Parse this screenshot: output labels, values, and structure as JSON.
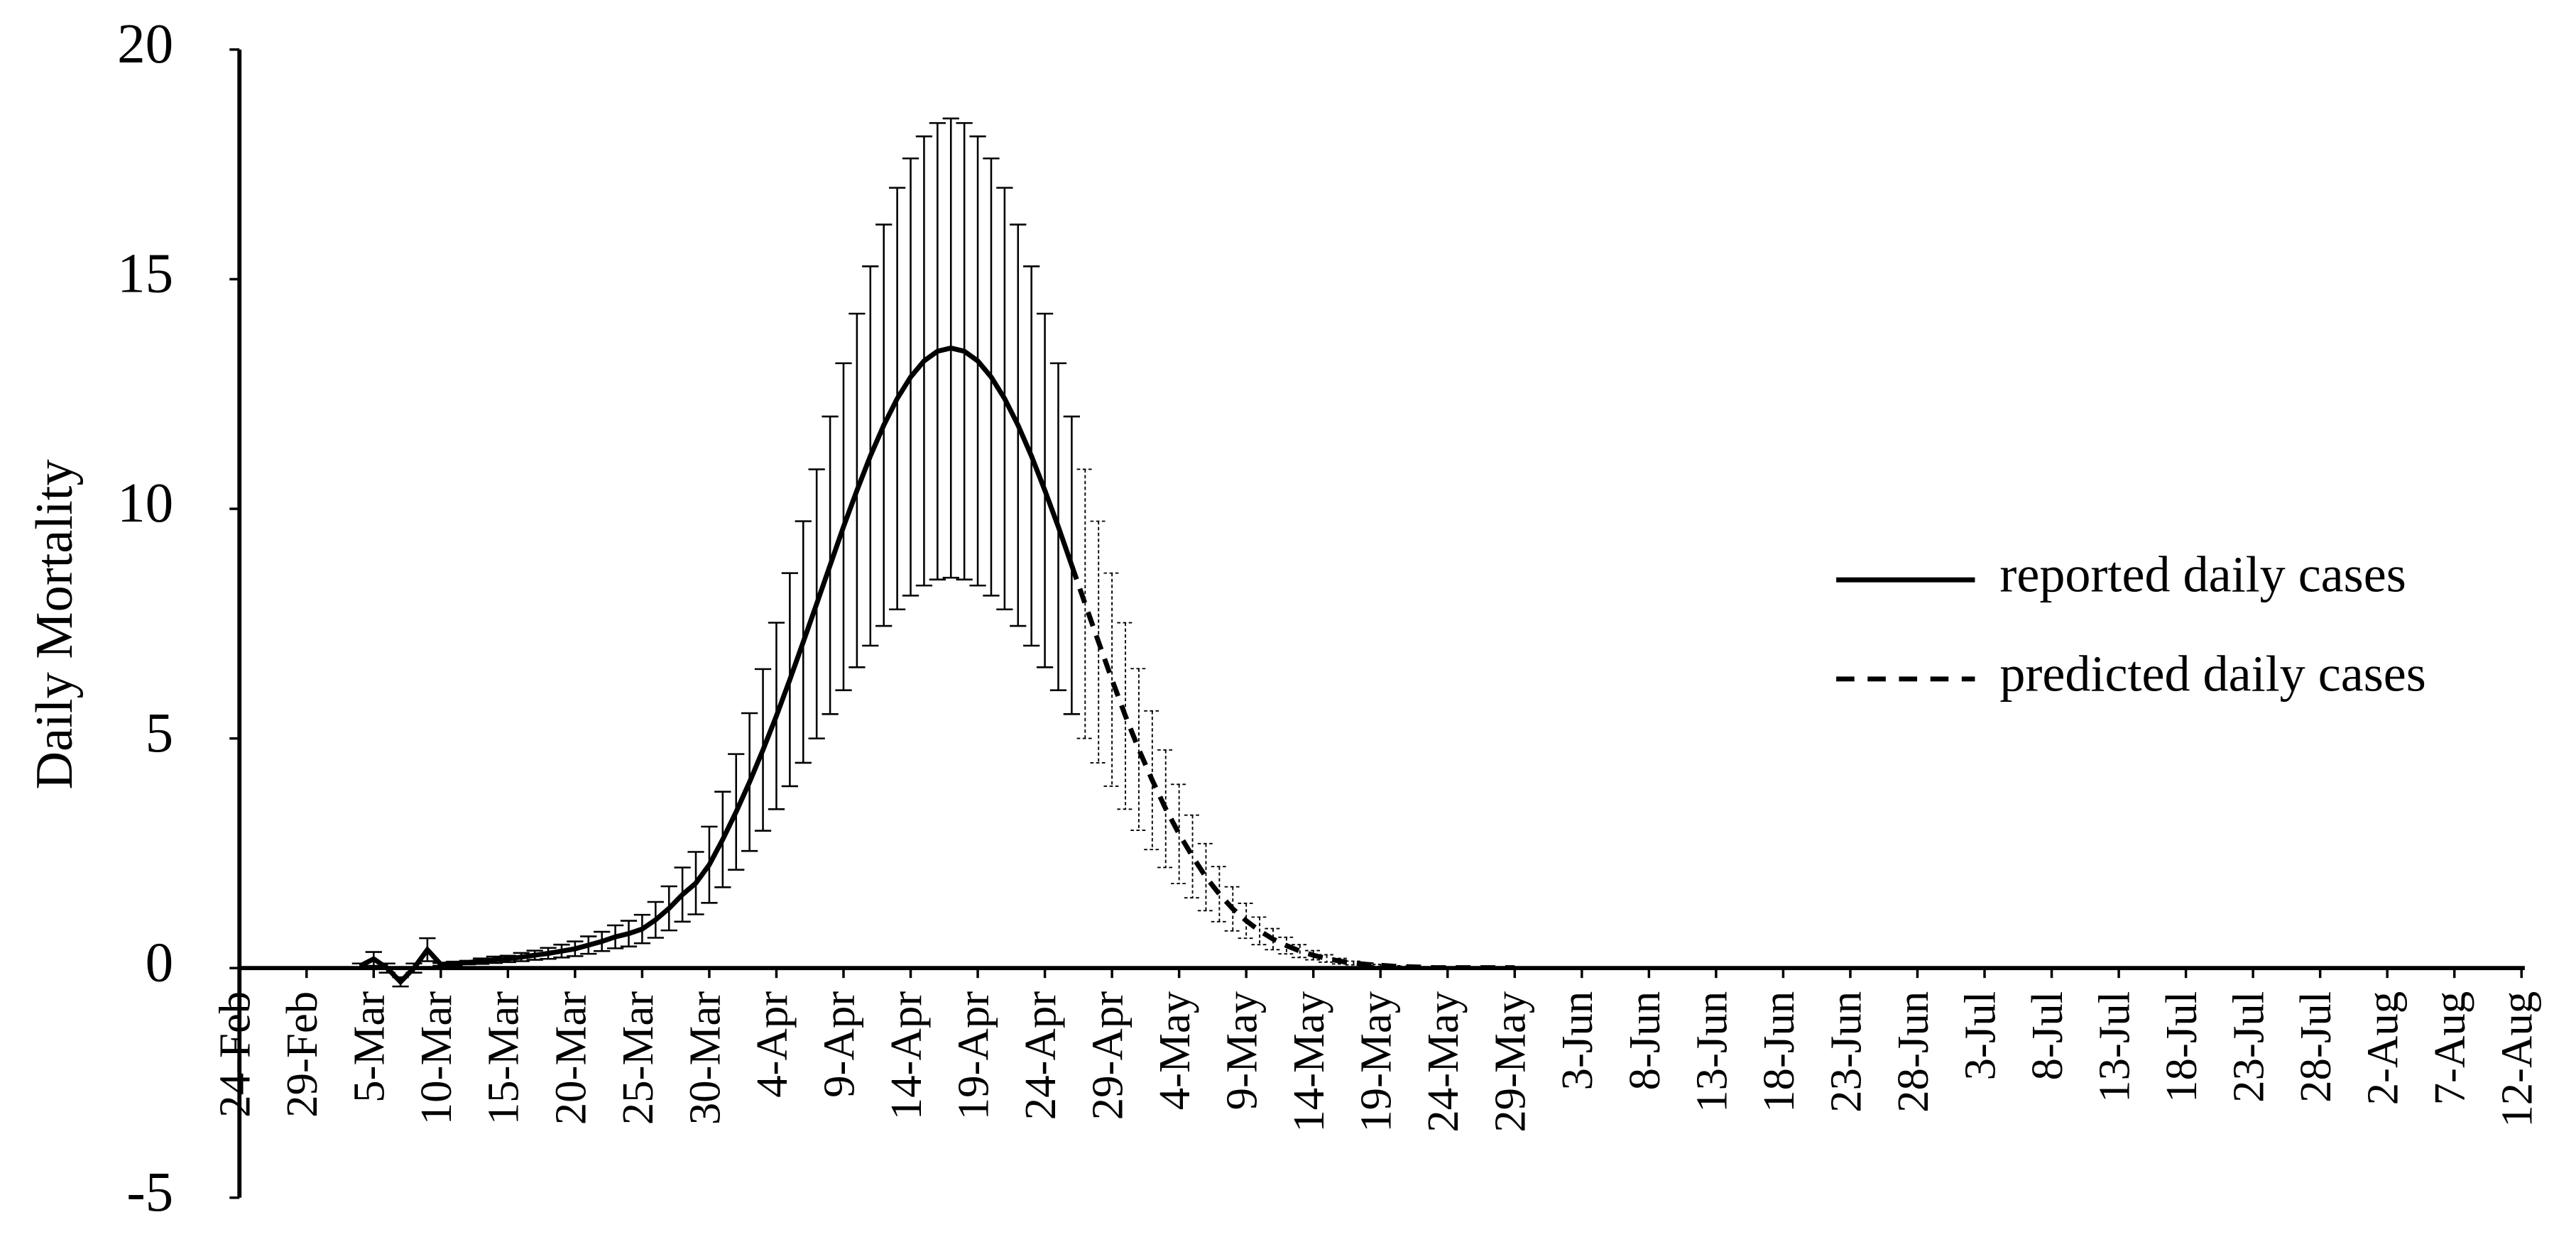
{
  "chart_data": {
    "type": "line",
    "ylabel": "Daily Mortality",
    "categories": [
      "24-Feb",
      null,
      null,
      null,
      null,
      "29-Feb",
      null,
      null,
      null,
      null,
      "5-Mar",
      null,
      null,
      null,
      null,
      "10-Mar",
      null,
      null,
      null,
      null,
      "15-Mar",
      null,
      null,
      null,
      null,
      "20-Mar",
      null,
      null,
      null,
      null,
      "25-Mar",
      null,
      null,
      null,
      null,
      "30-Mar",
      null,
      null,
      null,
      null,
      "4-Apr",
      null,
      null,
      null,
      null,
      "9-Apr",
      null,
      null,
      null,
      null,
      "14-Apr",
      null,
      null,
      null,
      null,
      "19-Apr",
      null,
      null,
      null,
      null,
      "24-Apr",
      null,
      null,
      null,
      null,
      "29-Apr",
      null,
      null,
      null,
      null,
      "4-May",
      null,
      null,
      null,
      null,
      "9-May",
      null,
      null,
      null,
      null,
      "14-May",
      null,
      null,
      null,
      null,
      "19-May",
      null,
      null,
      null,
      null,
      "24-May",
      null,
      null,
      null,
      null,
      "29-May",
      null,
      null,
      null,
      null,
      "3-Jun",
      null,
      null,
      null,
      null,
      "8-Jun",
      null,
      null,
      null,
      null,
      "13-Jun",
      null,
      null,
      null,
      null,
      "18-Jun",
      null,
      null,
      null,
      null,
      "23-Jun",
      null,
      null,
      null,
      null,
      "28-Jun",
      null,
      null,
      null,
      null,
      "3-Jul",
      null,
      null,
      null,
      null,
      "8-Jul",
      null,
      null,
      null,
      null,
      "13-Jul",
      null,
      null,
      null,
      null,
      "18-Jul",
      null,
      null,
      null,
      null,
      "23-Jul",
      null,
      null,
      null,
      null,
      "28-Jul",
      null,
      null,
      null,
      null,
      "2-Aug",
      null,
      null,
      null,
      null,
      "7-Aug",
      null,
      null,
      null,
      null,
      "12-Aug"
    ],
    "series": [
      {
        "name": "reported daily cases",
        "color": "#000000",
        "dash": false,
        "values": [
          null,
          null,
          null,
          null,
          null,
          null,
          null,
          null,
          null,
          0.05,
          0.2,
          0,
          -0.3,
          0,
          0.4,
          0.08,
          0.1,
          0.12,
          0.15,
          0.18,
          0.2,
          0.24,
          0.28,
          0.32,
          0.37,
          0.42,
          0.5,
          0.58,
          0.68,
          0.75,
          0.85,
          1.05,
          1.3,
          1.6,
          1.85,
          2.25,
          2.8,
          3.4,
          4.05,
          4.75,
          5.49,
          6.28,
          7.1,
          7.93,
          8.77,
          9.61,
          10.4,
          11.15,
          11.82,
          12.4,
          12.87,
          13.22,
          13.43,
          13.5,
          13.43,
          13.22,
          12.87,
          12.4,
          11.82,
          11.15,
          10.4,
          9.61,
          8.77,
          null,
          null,
          null,
          null,
          null,
          null,
          null,
          null,
          null,
          null,
          null,
          null,
          null,
          null,
          null,
          null,
          null,
          null,
          null,
          null,
          null,
          null,
          null,
          null,
          null,
          null,
          null,
          null,
          null,
          null,
          null,
          null,
          null,
          null,
          null,
          null,
          null,
          null,
          null,
          null,
          null,
          null,
          null,
          null,
          null,
          null,
          null,
          null,
          null,
          null,
          null,
          null,
          null,
          null,
          null,
          null,
          null,
          null,
          null,
          null,
          null,
          null,
          null,
          null,
          null,
          null,
          null,
          null,
          null,
          null,
          null,
          null,
          null,
          null,
          null,
          null,
          null,
          null,
          null,
          null,
          null,
          null,
          null,
          null,
          null,
          null,
          null,
          null,
          null,
          null,
          null,
          null,
          null,
          null,
          null,
          null,
          null,
          null,
          null,
          null,
          null,
          null,
          null,
          null,
          null,
          null,
          null,
          null
        ],
        "errors": [
          null,
          null,
          null,
          null,
          null,
          null,
          null,
          null,
          null,
          0.05,
          0.15,
          0.1,
          0.1,
          0.1,
          0.25,
          0.03,
          0.04,
          0.04,
          0.06,
          0.07,
          0.07,
          0.09,
          0.1,
          0.12,
          0.14,
          0.16,
          0.19,
          0.21,
          0.25,
          0.28,
          0.31,
          0.39,
          0.48,
          0.59,
          0.68,
          0.83,
          1.04,
          1.26,
          1.5,
          1.76,
          2.03,
          2.32,
          2.63,
          2.93,
          3.24,
          3.56,
          3.85,
          4.13,
          4.37,
          4.59,
          4.76,
          4.89,
          4.97,
          5,
          4.97,
          4.89,
          4.76,
          4.59,
          4.37,
          4.13,
          3.85,
          3.56,
          3.24,
          null,
          null,
          null,
          null,
          null,
          null,
          null,
          null,
          null,
          null,
          null,
          null,
          null,
          null,
          null,
          null,
          null,
          null,
          null,
          null,
          null,
          null,
          null,
          null,
          null,
          null,
          null,
          null,
          null,
          null,
          null,
          null,
          null,
          null,
          null,
          null,
          null,
          null,
          null,
          null,
          null,
          null,
          null,
          null,
          null,
          null,
          null,
          null,
          null,
          null,
          null,
          null,
          null,
          null,
          null,
          null,
          null,
          null,
          null,
          null,
          null,
          null,
          null,
          null,
          null,
          null,
          null,
          null,
          null,
          null,
          null,
          null,
          null,
          null,
          null,
          null,
          null,
          null,
          null,
          null,
          null,
          null,
          null,
          null,
          null,
          null,
          null,
          null,
          null,
          null,
          null,
          null,
          null,
          null,
          null,
          null,
          null,
          null,
          null,
          null,
          null,
          null,
          null,
          null,
          null,
          null,
          null,
          null
        ]
      },
      {
        "name": "predicted daily cases",
        "color": "#000000",
        "dash": true,
        "values": [
          null,
          null,
          null,
          null,
          null,
          null,
          null,
          null,
          null,
          null,
          null,
          null,
          null,
          null,
          null,
          null,
          null,
          null,
          null,
          null,
          null,
          null,
          null,
          null,
          null,
          null,
          null,
          null,
          null,
          null,
          null,
          null,
          null,
          null,
          null,
          null,
          null,
          null,
          null,
          null,
          null,
          null,
          null,
          null,
          null,
          null,
          null,
          null,
          null,
          null,
          null,
          null,
          null,
          null,
          null,
          null,
          null,
          null,
          null,
          null,
          null,
          null,
          8.77,
          7.93,
          7.1,
          6.28,
          5.49,
          4.76,
          4.09,
          3.47,
          2.92,
          2.43,
          1.98,
          1.61,
          1.29,
          1.03,
          0.81,
          0.63,
          0.49,
          0.37,
          0.28,
          0.21,
          0.15,
          0.11,
          0.08,
          0.06,
          0.04,
          0.03,
          0.02,
          0.01,
          0.01,
          0.01,
          0.01,
          0.01,
          0.01,
          0.01,
          null,
          null,
          null,
          null,
          null,
          null,
          null,
          null,
          null,
          null,
          null,
          null,
          null,
          null,
          null,
          null,
          null,
          null,
          null,
          null,
          null,
          null,
          null,
          null,
          null,
          null,
          null,
          null,
          null,
          null,
          null,
          null,
          null,
          null,
          null,
          null,
          null,
          null,
          null,
          null,
          null,
          null,
          null,
          null,
          null,
          null,
          null,
          null,
          null,
          null,
          null,
          null,
          null,
          null,
          null,
          null,
          null,
          null,
          null,
          null,
          null,
          null,
          null,
          null,
          null,
          null,
          null,
          null,
          null,
          null,
          null,
          null,
          null,
          null,
          null
        ],
        "errors": [
          null,
          null,
          null,
          null,
          null,
          null,
          null,
          null,
          null,
          null,
          null,
          null,
          null,
          null,
          null,
          null,
          null,
          null,
          null,
          null,
          null,
          null,
          null,
          null,
          null,
          null,
          null,
          null,
          null,
          null,
          null,
          null,
          null,
          null,
          null,
          null,
          null,
          null,
          null,
          null,
          null,
          null,
          null,
          null,
          null,
          null,
          null,
          null,
          null,
          null,
          null,
          null,
          null,
          null,
          null,
          null,
          null,
          null,
          null,
          null,
          null,
          null,
          3.24,
          2.93,
          2.63,
          2.32,
          2.03,
          1.76,
          1.51,
          1.28,
          1.08,
          0.9,
          0.73,
          0.6,
          0.48,
          0.38,
          0.3,
          0.23,
          0.18,
          0.14,
          0.1,
          0.08,
          0.06,
          0.04,
          0.03,
          0.02,
          0.01,
          0.01,
          0.01,
          0.01,
          0,
          0,
          0,
          0,
          0,
          0,
          null,
          null,
          null,
          null,
          null,
          null,
          null,
          null,
          null,
          null,
          null,
          null,
          null,
          null,
          null,
          null,
          null,
          null,
          null,
          null,
          null,
          null,
          null,
          null,
          null,
          null,
          null,
          null,
          null,
          null,
          null,
          null,
          null,
          null,
          null,
          null,
          null,
          null,
          null,
          null,
          null,
          null,
          null,
          null,
          null,
          null,
          null,
          null,
          null,
          null,
          null,
          null,
          null,
          null,
          null,
          null,
          null,
          null,
          null,
          null,
          null,
          null,
          null,
          null,
          null,
          null,
          null,
          null,
          null,
          null,
          null,
          null,
          null,
          null,
          null
        ]
      }
    ],
    "ylim": [
      -5,
      20
    ],
    "yticks": [
      -5,
      0,
      5,
      10,
      15,
      20
    ],
    "grid": false,
    "legend": "right"
  }
}
